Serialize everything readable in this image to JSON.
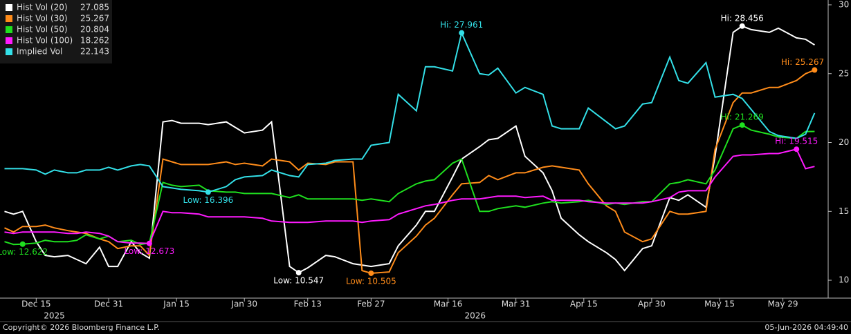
{
  "chart_data": {
    "type": "line",
    "x": [
      "2025-12-08",
      "2025-12-10",
      "2025-12-12",
      "2025-12-15",
      "2025-12-17",
      "2025-12-19",
      "2025-12-22",
      "2025-12-24",
      "2025-12-26",
      "2025-12-29",
      "2025-12-31",
      "2026-01-02",
      "2026-01-05",
      "2026-01-07",
      "2026-01-09",
      "2026-01-12",
      "2026-01-14",
      "2026-01-16",
      "2026-01-20",
      "2026-01-22",
      "2026-01-26",
      "2026-01-28",
      "2026-01-30",
      "2026-02-03",
      "2026-02-05",
      "2026-02-09",
      "2026-02-11",
      "2026-02-13",
      "2026-02-17",
      "2026-02-19",
      "2026-02-23",
      "2026-02-25",
      "2026-02-27",
      "2026-03-03",
      "2026-03-05",
      "2026-03-09",
      "2026-03-11",
      "2026-03-13",
      "2026-03-17",
      "2026-03-19",
      "2026-03-23",
      "2026-03-25",
      "2026-03-27",
      "2026-03-31",
      "2026-04-02",
      "2026-04-06",
      "2026-04-08",
      "2026-04-10",
      "2026-04-14",
      "2026-04-16",
      "2026-04-20",
      "2026-04-22",
      "2026-04-24",
      "2026-04-28",
      "2026-04-30",
      "2026-05-04",
      "2026-05-06",
      "2026-05-08",
      "2026-05-12",
      "2026-05-14",
      "2026-05-18",
      "2026-05-20",
      "2026-05-22",
      "2026-05-26",
      "2026-05-28",
      "2026-06-01",
      "2026-06-03",
      "2026-06-05"
    ],
    "series": [
      {
        "name": "Hist Vol (20)",
        "color": "#ffffff",
        "values": [
          15.0,
          14.8,
          15.0,
          12.8,
          11.8,
          11.7,
          11.8,
          11.5,
          11.2,
          12.4,
          11.0,
          11.0,
          12.8,
          12.0,
          11.6,
          21.5,
          21.6,
          21.4,
          21.4,
          21.3,
          21.5,
          21.1,
          20.7,
          20.9,
          21.5,
          11.0,
          10.547,
          10.9,
          11.8,
          11.7,
          11.2,
          11.1,
          11.0,
          11.2,
          12.5,
          14.0,
          15.0,
          15.0,
          17.5,
          18.8,
          19.7,
          20.2,
          20.3,
          21.2,
          19.0,
          17.8,
          16.5,
          14.5,
          13.3,
          12.8,
          12.0,
          11.5,
          10.7,
          12.3,
          12.5,
          16.0,
          15.8,
          16.2,
          15.3,
          19.0,
          28.0,
          28.456,
          28.2,
          28.0,
          28.3,
          27.6,
          27.5,
          27.085
        ],
        "high": {
          "x": "2026-05-20",
          "value": 28.456,
          "label": "Hi: 28.456"
        },
        "low": {
          "x": "2026-02-11",
          "value": 10.547,
          "label": "Low: 10.547"
        }
      },
      {
        "name": "Hist Vol (30)",
        "color": "#ff8c1a",
        "values": [
          13.8,
          13.5,
          13.9,
          13.9,
          14.0,
          13.8,
          13.6,
          13.5,
          13.4,
          13.0,
          12.8,
          12.3,
          12.5,
          12.5,
          11.8,
          18.8,
          18.6,
          18.4,
          18.4,
          18.4,
          18.6,
          18.4,
          18.5,
          18.3,
          18.8,
          18.6,
          18.0,
          18.5,
          18.4,
          18.6,
          18.6,
          10.7,
          10.505,
          10.6,
          12.0,
          13.2,
          14.0,
          14.5,
          16.2,
          17.0,
          17.1,
          17.6,
          17.3,
          17.8,
          17.8,
          18.2,
          18.3,
          18.2,
          18.0,
          17.0,
          15.4,
          15.0,
          13.5,
          12.8,
          13.0,
          15.0,
          14.8,
          14.8,
          15.0,
          19.5,
          22.9,
          23.6,
          23.6,
          24.0,
          24.0,
          24.5,
          25.0,
          25.267
        ],
        "high": {
          "x": "2026-06-05",
          "value": 25.267,
          "label": "Hi: 25.267"
        },
        "low": {
          "x": "2026-02-27",
          "value": 10.505,
          "label": "Low: 10.505"
        }
      },
      {
        "name": "Hist Vol (50)",
        "color": "#1fe01f",
        "values": [
          12.8,
          12.6,
          12.622,
          12.7,
          12.9,
          12.8,
          12.8,
          12.9,
          13.3,
          13.0,
          13.2,
          12.8,
          12.9,
          12.6,
          12.7,
          17.1,
          16.9,
          16.8,
          16.9,
          16.5,
          16.4,
          16.4,
          16.3,
          16.3,
          16.3,
          16.0,
          16.2,
          15.9,
          15.9,
          15.9,
          15.9,
          15.8,
          15.9,
          15.7,
          16.3,
          17.0,
          17.2,
          17.3,
          18.5,
          18.8,
          15.0,
          15.0,
          15.2,
          15.4,
          15.3,
          15.6,
          15.7,
          15.6,
          15.7,
          15.8,
          15.5,
          15.6,
          15.5,
          15.7,
          15.7,
          17.0,
          17.1,
          17.3,
          17.0,
          18.0,
          21.0,
          21.269,
          20.9,
          20.6,
          20.4,
          20.3,
          20.8,
          20.804
        ],
        "high": {
          "x": "2026-05-20",
          "value": 21.269,
          "label": "Hi: 21.269"
        },
        "low": {
          "x": "2025-12-12",
          "value": 12.622,
          "label": "Low: 12.622"
        }
      },
      {
        "name": "Hist Vol (100)",
        "color": "#ff1aff",
        "values": [
          13.5,
          13.4,
          13.5,
          13.5,
          13.5,
          13.5,
          13.4,
          13.4,
          13.5,
          13.4,
          13.2,
          12.8,
          12.7,
          12.7,
          12.673,
          15.0,
          14.9,
          14.9,
          14.8,
          14.6,
          14.6,
          14.6,
          14.6,
          14.5,
          14.3,
          14.2,
          14.2,
          14.2,
          14.3,
          14.3,
          14.3,
          14.2,
          14.3,
          14.4,
          14.8,
          15.2,
          15.4,
          15.5,
          15.8,
          15.9,
          15.9,
          16.0,
          16.1,
          16.1,
          16.0,
          16.1,
          15.8,
          15.8,
          15.8,
          15.7,
          15.6,
          15.6,
          15.6,
          15.6,
          15.7,
          16.0,
          16.4,
          16.5,
          16.5,
          17.5,
          19.0,
          19.1,
          19.1,
          19.2,
          19.2,
          19.515,
          18.1,
          18.262
        ],
        "high": {
          "x": "2026-06-01",
          "value": 19.515,
          "label": "Hi: 19.515"
        },
        "low": {
          "x": "2026-01-09",
          "value": 12.673,
          "label": "Low: 12.673"
        }
      },
      {
        "name": "Implied Vol",
        "color": "#33e0e8",
        "values": [
          18.1,
          18.1,
          18.1,
          18.0,
          17.7,
          18.0,
          17.8,
          17.8,
          18.0,
          18.0,
          18.2,
          18.0,
          18.3,
          18.4,
          18.3,
          16.8,
          16.7,
          16.6,
          16.5,
          16.396,
          16.8,
          17.3,
          17.5,
          17.6,
          18.0,
          17.6,
          17.5,
          18.4,
          18.5,
          18.7,
          18.8,
          18.8,
          19.8,
          20.0,
          23.5,
          22.3,
          25.5,
          25.5,
          25.2,
          27.961,
          25.0,
          24.9,
          25.4,
          23.6,
          24.0,
          23.5,
          21.2,
          21.0,
          21.0,
          22.5,
          21.5,
          21.0,
          21.2,
          22.8,
          22.9,
          26.2,
          24.5,
          24.3,
          25.8,
          23.3,
          23.5,
          23.2,
          22.4,
          20.8,
          20.5,
          20.3,
          20.6,
          22.143
        ],
        "high": {
          "x": "2026-03-19",
          "value": 27.961,
          "label": "Hi: 27.961"
        },
        "low": {
          "x": "2026-01-22",
          "value": 16.396,
          "label": "Low: 16.396"
        }
      }
    ],
    "xlim": [
      "2025-12-07",
      "2026-06-08"
    ],
    "xticks": [
      {
        "value": "2025-12-15",
        "label": "Dec 15"
      },
      {
        "value": "2025-12-31",
        "label": "Dec 31"
      },
      {
        "value": "2026-01-15",
        "label": "Jan 15"
      },
      {
        "value": "2026-01-30",
        "label": "Jan 30"
      },
      {
        "value": "2026-02-13",
        "label": "Feb 13"
      },
      {
        "value": "2026-02-27",
        "label": "Feb 27"
      },
      {
        "value": "2026-03-16",
        "label": "Mar 16"
      },
      {
        "value": "2026-03-31",
        "label": "Mar 31"
      },
      {
        "value": "2026-04-15",
        "label": "Apr 15"
      },
      {
        "value": "2026-04-30",
        "label": "Apr 30"
      },
      {
        "value": "2026-05-15",
        "label": "May 15"
      },
      {
        "value": "2026-05-29",
        "label": "May 29"
      }
    ],
    "year_labels": [
      {
        "value": "2025-12-19",
        "label": "2025"
      },
      {
        "value": "2026-03-22",
        "label": "2026"
      }
    ],
    "ylim": [
      8.7,
      30.35
    ],
    "yticks": [
      10,
      15,
      20,
      25,
      30
    ],
    "grid": false,
    "legend": "top-left",
    "copyright": "Copyright© 2026 Bloomberg Finance L.P.",
    "timestamp": "05-Jun-2026 04:49:40"
  }
}
